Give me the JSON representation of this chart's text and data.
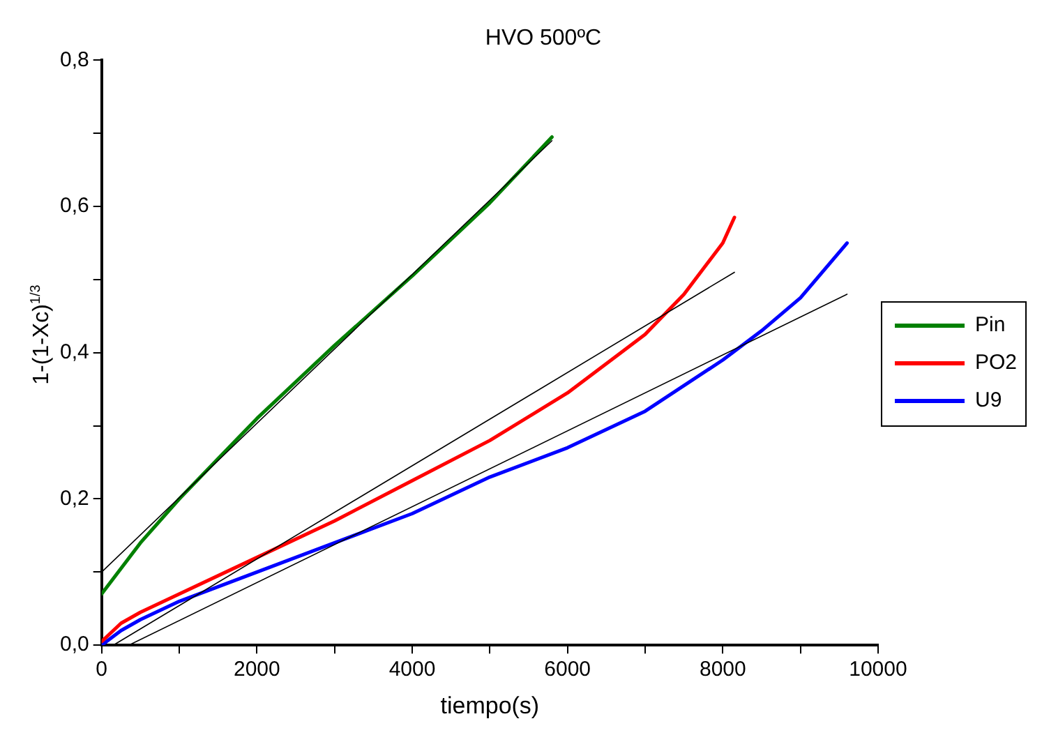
{
  "chart_data": {
    "type": "line",
    "title": "HVO 500ºC",
    "xlabel": "tiempo(s)",
    "ylabel": "1-(1-Xc)$^{1/3}$",
    "xlim": [
      0,
      10000
    ],
    "xticks": [
      0,
      {
        "value": 1000,
        "label": null
      },
      2000,
      {
        "value": 3000,
        "label": null
      },
      4000,
      {
        "value": 5000,
        "label": null
      },
      6000,
      {
        "value": 7000,
        "label": null
      },
      8000,
      {
        "value": 9000,
        "label": null
      },
      10000
    ],
    "ylim": [
      0,
      0.8
    ],
    "yticks": [
      {
        "value": 0,
        "label": "0,0"
      },
      {
        "value": 0.1,
        "label": null
      },
      {
        "value": 0.2,
        "label": "0,2"
      },
      {
        "value": 0.3,
        "label": null
      },
      {
        "value": 0.4,
        "label": "0,4"
      },
      {
        "value": 0.5,
        "label": null
      },
      {
        "value": 0.6,
        "label": "0,6"
      },
      {
        "value": 0.7,
        "label": null
      },
      {
        "value": 0.8,
        "label": "0,8"
      }
    ],
    "grid": false,
    "legend": "right",
    "marker": "none",
    "line_style": "solid",
    "series": [
      {
        "name": "Pin",
        "color": "#008000",
        "x": [
          0,
          500,
          1000,
          1500,
          2000,
          3000,
          4000,
          5000,
          5800
        ],
        "values": [
          0.07,
          0.14,
          0.2,
          0.255,
          0.31,
          0.41,
          0.505,
          0.605,
          0.695
        ]
      },
      {
        "name": "PO2",
        "color": "#ff0000",
        "x": [
          0,
          250,
          500,
          1000,
          2000,
          3000,
          4000,
          5000,
          6000,
          7000,
          7500,
          8000,
          8150
        ],
        "values": [
          0.005,
          0.03,
          0.045,
          0.07,
          0.12,
          0.17,
          0.225,
          0.28,
          0.345,
          0.425,
          0.48,
          0.55,
          0.585
        ]
      },
      {
        "name": "U9",
        "color": "#0000ff",
        "x": [
          0,
          250,
          500,
          1000,
          2000,
          3000,
          4000,
          5000,
          6000,
          7000,
          8000,
          8500,
          9000,
          9600
        ],
        "values": [
          0,
          0.02,
          0.035,
          0.06,
          0.1,
          0.14,
          0.18,
          0.23,
          0.27,
          0.32,
          0.39,
          0.43,
          0.475,
          0.55
        ]
      },
      {
        "type": "line",
        "color": "#000000",
        "x": [
          0,
          5800
        ],
        "values": [
          0.1,
          0.69
        ]
      },
      {
        "type": "line",
        "color": "#000000",
        "x": [
          150,
          8150
        ],
        "values": [
          0,
          0.51
        ]
      },
      {
        "type": "line",
        "color": "#000000",
        "x": [
          350,
          9600
        ],
        "values": [
          0,
          0.48
        ]
      }
    ]
  }
}
